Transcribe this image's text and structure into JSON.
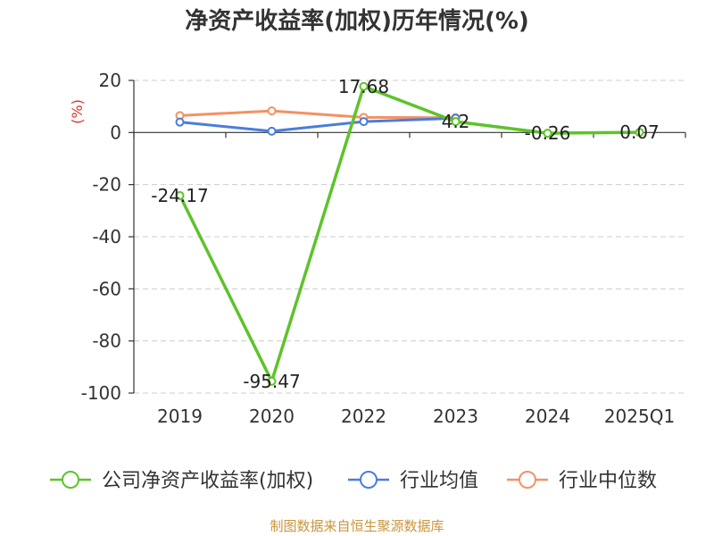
{
  "chart_data": {
    "type": "line",
    "title": "净资产收益率(加权)历年情况(%)",
    "ylabel": "(%)",
    "categories": [
      "2019",
      "2020",
      "2022",
      "2023",
      "2024",
      "2025Q1"
    ],
    "ylim": [
      -100,
      20
    ],
    "yticks": [
      20,
      0,
      -20,
      -40,
      -60,
      -80,
      -100
    ],
    "grid": true,
    "legend_position": "bottom",
    "series": [
      {
        "name": "公司净资产收益率(加权)",
        "color": "#5ec32a",
        "values": [
          -24.17,
          -95.47,
          17.68,
          4.2,
          -0.26,
          0.07
        ],
        "labels": [
          "-24.17",
          "-95.47",
          "17.68",
          "4.2",
          "-0.26",
          "0.07"
        ]
      },
      {
        "name": "行业均值",
        "color": "#4a7ddb",
        "values": [
          4.0,
          0.5,
          4.2,
          5.5,
          null,
          null
        ]
      },
      {
        "name": "行业中位数",
        "color": "#f49163",
        "values": [
          6.5,
          8.3,
          5.8,
          5.7,
          null,
          null
        ]
      }
    ]
  },
  "source": "制图数据来自恒生聚源数据库"
}
